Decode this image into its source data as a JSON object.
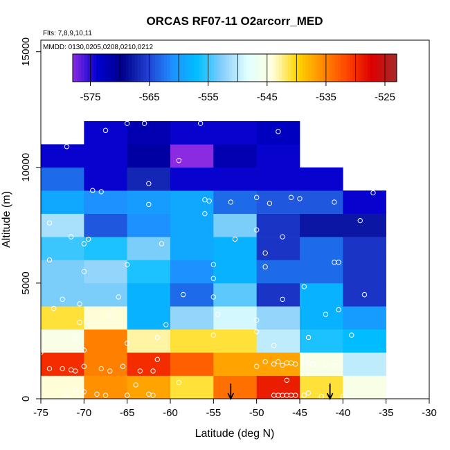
{
  "chart_data": {
    "type": "heatmap",
    "title": "ORCAS RF07-11 O2arcorr_MED",
    "notes": [
      "Flts: 7,8,9,10,11",
      "MMDD: 0130,0205,0208,0210,0212"
    ],
    "xlabel": "Latitude (deg N)",
    "ylabel": "Altitude (m)",
    "xlim": [
      -75,
      -30
    ],
    "ylim": [
      0,
      15500
    ],
    "x_ticks": [
      -75,
      -70,
      -65,
      -60,
      -55,
      -50,
      -45,
      -40,
      -35,
      -30
    ],
    "y_ticks": [
      0,
      5000,
      10000,
      15000
    ],
    "x_bin_edges": [
      -75,
      -70,
      -65,
      -60,
      -55,
      -50,
      -45,
      -40,
      -35
    ],
    "y_bin_edges": [
      0,
      1000,
      2000,
      3000,
      4000,
      5000,
      6000,
      7000,
      8000,
      9000,
      10000,
      11000,
      12000
    ],
    "cells": [
      [
        -544,
        -536,
        -537,
        -541,
        -534,
        -529,
        -541,
        -545
      ],
      [
        -530,
        -535,
        -530,
        -533,
        -537,
        -537,
        -545,
        -550
      ],
      [
        -545,
        -535,
        -543,
        -541,
        -541,
        -550,
        -556,
        -557
      ],
      [
        -541,
        -544,
        -558,
        -552,
        -549,
        -552,
        -558,
        -560
      ],
      [
        -553,
        -553,
        -558,
        -563,
        -554,
        -566,
        -558,
        -566
      ],
      [
        -553,
        -552,
        -556,
        -561,
        -558,
        -563,
        -563,
        -566
      ],
      [
        -555,
        -556,
        -553,
        -559,
        -558,
        -566,
        -563,
        -566
      ],
      [
        -551,
        -564,
        -561,
        -559,
        -553,
        -566,
        -568,
        -568
      ],
      [
        -559,
        -561,
        -560,
        -559,
        -563,
        -564,
        -564,
        -574
      ],
      [
        -563,
        -574,
        -567,
        -574,
        -574,
        -574,
        -574,
        null
      ],
      [
        -574,
        -574,
        -571,
        -580,
        -572,
        -574,
        null,
        null
      ],
      [
        null,
        -574,
        -572,
        -574,
        -574,
        -573,
        null,
        null
      ]
    ],
    "colorbar": {
      "min": -578,
      "max": -523,
      "ticks": [
        -575,
        -565,
        -555,
        -545,
        -535,
        -525
      ],
      "colors": [
        "#8a2be2",
        "#0000cd",
        "#00008b",
        "#1f3fd0",
        "#1e90ff",
        "#00bfff",
        "#87cefa",
        "#e0ffff",
        "#ffffe0",
        "#ffd700",
        "#ff8c00",
        "#ff4500",
        "#dd0000",
        "#a52a2a"
      ]
    },
    "points": [
      [
        -75,
        100
      ],
      [
        -72,
        200
      ],
      [
        -71,
        400
      ],
      [
        -70,
        300
      ],
      [
        -68.5,
        200
      ],
      [
        -67.5,
        150
      ],
      [
        -65,
        150
      ],
      [
        -64,
        600
      ],
      [
        -62.5,
        200
      ],
      [
        -62,
        150
      ],
      [
        -59,
        700
      ],
      [
        -48,
        150
      ],
      [
        -47.5,
        150
      ],
      [
        -47,
        150
      ],
      [
        -46.5,
        150
      ],
      [
        -46,
        150
      ],
      [
        -45.5,
        150
      ],
      [
        -44.5,
        150
      ],
      [
        -44,
        250
      ],
      [
        -42.5,
        100
      ],
      [
        -40,
        100
      ],
      [
        -46.5,
        800
      ],
      [
        -50,
        1400
      ],
      [
        -72.5,
        1300
      ],
      [
        -71.5,
        1250
      ],
      [
        -71,
        1200
      ],
      [
        -70,
        1400
      ],
      [
        -68,
        1300
      ],
      [
        -67,
        1200
      ],
      [
        -65.5,
        1400
      ],
      [
        -63.5,
        1200
      ],
      [
        -62,
        1200
      ],
      [
        -61.5,
        1700
      ],
      [
        -74,
        1300
      ],
      [
        -49,
        1600
      ],
      [
        -48,
        1500
      ],
      [
        -47.5,
        1600
      ],
      [
        -47,
        1450
      ],
      [
        -46,
        1550
      ],
      [
        -45.5,
        1500
      ],
      [
        -44.5,
        1600
      ],
      [
        -44,
        1550
      ],
      [
        -42,
        1500
      ],
      [
        -41,
        1450
      ],
      [
        -46.5,
        1550
      ],
      [
        -43.5,
        1500
      ],
      [
        -75,
        2000
      ],
      [
        -70,
        2100
      ],
      [
        -65,
        2400
      ],
      [
        -61.5,
        2650
      ],
      [
        -55,
        2750
      ],
      [
        -50,
        2900
      ],
      [
        -48,
        2300
      ],
      [
        -44,
        2650
      ],
      [
        -39,
        2750
      ],
      [
        -71,
        2600
      ],
      [
        -70.5,
        3300
      ],
      [
        -67,
        3600
      ],
      [
        -60.5,
        3200
      ],
      [
        -54.5,
        3650
      ],
      [
        -50,
        3400
      ],
      [
        -42,
        3650
      ],
      [
        -40.5,
        3850
      ],
      [
        -73.5,
        3900
      ],
      [
        -70.5,
        4100
      ],
      [
        -66,
        4400
      ],
      [
        -58.5,
        4500
      ],
      [
        -55,
        4400
      ],
      [
        -47,
        4300
      ],
      [
        -44.5,
        4850
      ],
      [
        -37.5,
        4500
      ],
      [
        -72.5,
        4300
      ],
      [
        -55,
        5200
      ],
      [
        -70,
        5500
      ],
      [
        -65,
        5800
      ],
      [
        -55,
        5800
      ],
      [
        -49,
        5700
      ],
      [
        -41,
        5900
      ],
      [
        -40.5,
        5900
      ],
      [
        -74,
        6000
      ],
      [
        -70,
        6700
      ],
      [
        -69.5,
        6900
      ],
      [
        -61,
        6700
      ],
      [
        -52.5,
        6900
      ],
      [
        -49,
        6300
      ],
      [
        -47,
        7000
      ],
      [
        -71.5,
        7000
      ],
      [
        -74,
        7600
      ],
      [
        -50,
        7300
      ],
      [
        -38,
        7700
      ],
      [
        -69,
        9000
      ],
      [
        -68,
        8950
      ],
      [
        -62.5,
        9300
      ],
      [
        -62.5,
        8400
      ],
      [
        -56,
        8000
      ],
      [
        -56,
        8600
      ],
      [
        -55.5,
        8550
      ],
      [
        -53,
        8500
      ],
      [
        -50,
        8700
      ],
      [
        -48.5,
        8450
      ],
      [
        -46,
        8700
      ],
      [
        -45,
        8650
      ],
      [
        -41,
        8500
      ],
      [
        -36.5,
        8900
      ],
      [
        -72,
        10900
      ],
      [
        -59,
        10300
      ],
      [
        -67.5,
        11600
      ],
      [
        -65,
        11900
      ],
      [
        -63,
        11900
      ],
      [
        -56.5,
        11900
      ],
      [
        -47.5,
        11550
      ]
    ],
    "arrows_lat": [
      -53,
      -41.5
    ]
  }
}
